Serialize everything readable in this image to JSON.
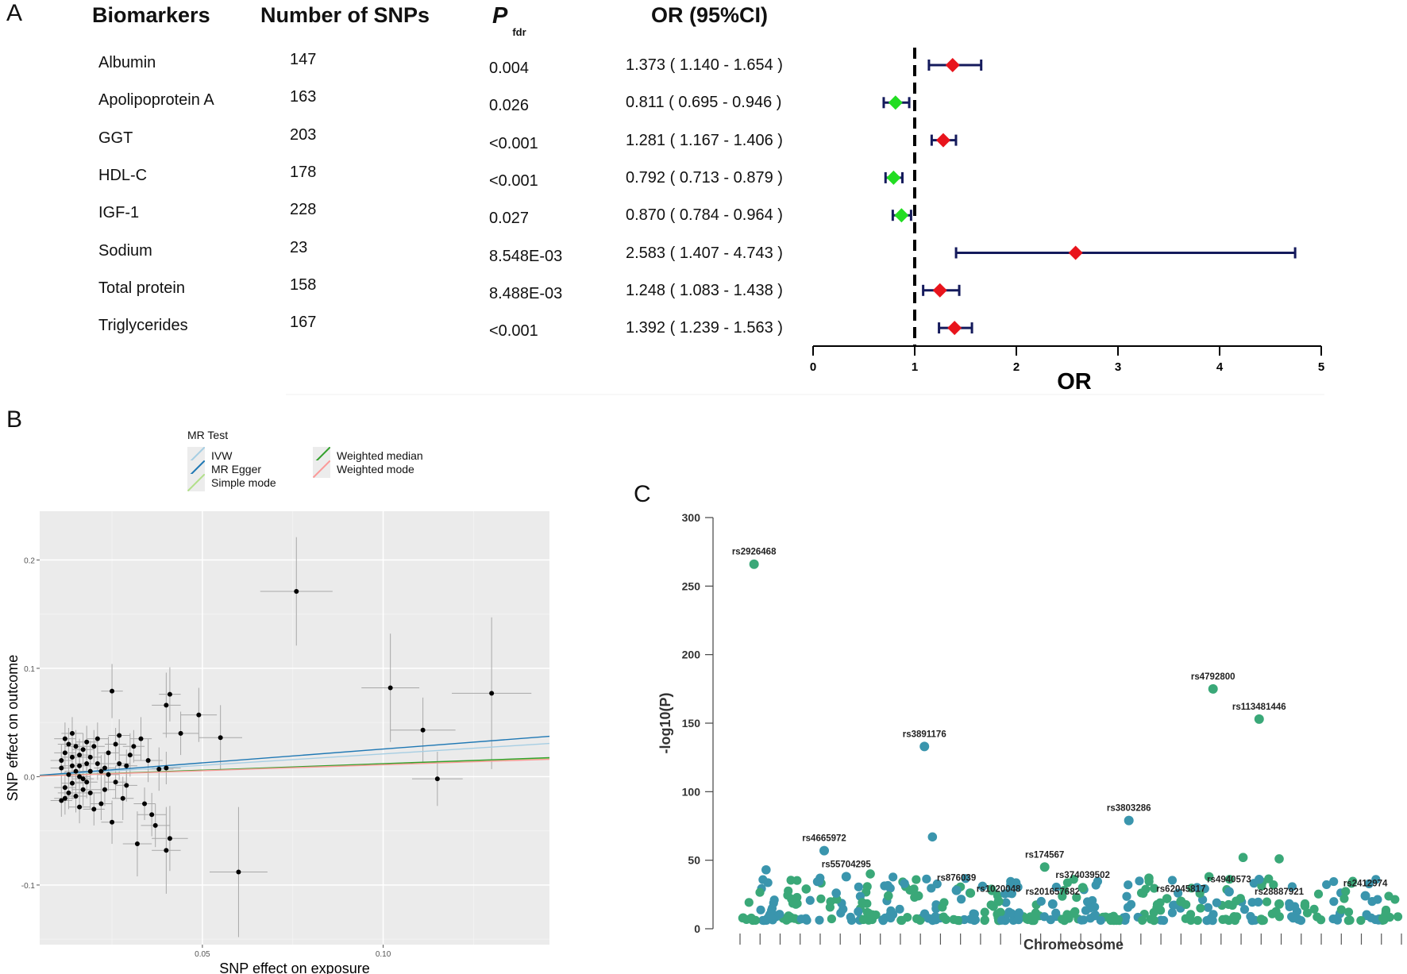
{
  "panel_labels": {
    "a": "A",
    "b": "B",
    "c": "C"
  },
  "forest": {
    "headers": {
      "biomarkers": "Biomarkers",
      "snps": "Number of SNPs",
      "p": "P",
      "p_sub": "fdr",
      "or": "OR (95%CI)"
    },
    "colors": {
      "risk": "#e8141c",
      "protective": "#22dd22",
      "ci": "#141a5c"
    }
  },
  "scatter": {
    "legend_title": "MR Test",
    "legend": [
      {
        "name": "IVW",
        "color": "#a6cee3"
      },
      {
        "name": "MR Egger",
        "color": "#1f78b4"
      },
      {
        "name": "Simple mode",
        "color": "#b2df8a"
      },
      {
        "name": "Weighted median",
        "color": "#33a02c"
      },
      {
        "name": "Weighted mode",
        "color": "#fb9a99"
      }
    ]
  },
  "chart_data": [
    {
      "type": "forest",
      "xlabel": "OR",
      "xlim": [
        0,
        5
      ],
      "xticks": [
        "0",
        "1",
        "2",
        "3",
        "4",
        "5"
      ],
      "reference_line": 1,
      "rows": [
        {
          "biomarker": "Albumin",
          "snps": "147",
          "p": "0.004",
          "or_text": "1.373 ( 1.140 - 1.654 )",
          "or": 1.373,
          "lo": 1.14,
          "hi": 1.654
        },
        {
          "biomarker": "Apolipoprotein A",
          "snps": "163",
          "p": "0.026",
          "or_text": "0.811 ( 0.695 - 0.946 )",
          "or": 0.811,
          "lo": 0.695,
          "hi": 0.946
        },
        {
          "biomarker": "GGT",
          "snps": "203",
          "p": "<0.001",
          "or_text": "1.281 ( 1.167 - 1.406 )",
          "or": 1.281,
          "lo": 1.167,
          "hi": 1.406
        },
        {
          "biomarker": "HDL-C",
          "snps": "178",
          "p": "<0.001",
          "or_text": "0.792 ( 0.713 - 0.879 )",
          "or": 0.792,
          "lo": 0.713,
          "hi": 0.879
        },
        {
          "biomarker": "IGF-1",
          "snps": "228",
          "p": "0.027",
          "or_text": "0.870 ( 0.784 - 0.964 )",
          "or": 0.87,
          "lo": 0.784,
          "hi": 0.964
        },
        {
          "biomarker": "Sodium",
          "snps": "23",
          "p": "8.548E-03",
          "or_text": "2.583 ( 1.407 - 4.743 )",
          "or": 2.583,
          "lo": 1.407,
          "hi": 4.743
        },
        {
          "biomarker": "Total protein",
          "snps": "158",
          "p": "8.488E-03",
          "or_text": "1.248 ( 1.083 - 1.438 )",
          "or": 1.248,
          "lo": 1.083,
          "hi": 1.438
        },
        {
          "biomarker": "Triglycerides",
          "snps": "167",
          "p": "<0.001",
          "or_text": "1.392 ( 1.239 - 1.563 )",
          "or": 1.392,
          "lo": 1.239,
          "hi": 1.563
        }
      ]
    },
    {
      "type": "scatter",
      "title": "",
      "xlabel": "SNP effect on exposure",
      "ylabel": "SNP effect on outcome",
      "xlim": [
        0.005,
        0.146
      ],
      "ylim": [
        -0.155,
        0.245
      ],
      "xticks": [
        {
          "v": 0.05,
          "label": "0.05"
        },
        {
          "v": 0.1,
          "label": "0.10"
        }
      ],
      "yticks": [
        {
          "v": -0.1,
          "label": "-0.1"
        },
        {
          "v": 0.0,
          "label": "0.0"
        },
        {
          "v": 0.1,
          "label": "0.1"
        },
        {
          "v": 0.2,
          "label": "0.2"
        }
      ],
      "lines": [
        {
          "name": "IVW",
          "slope": 0.21,
          "intercept": 0.0
        },
        {
          "name": "MR Egger",
          "slope": 0.255,
          "intercept": 0.0
        },
        {
          "name": "Simple mode",
          "slope": 0.115,
          "intercept": 0.0
        },
        {
          "name": "Weighted median",
          "slope": 0.12,
          "intercept": 0.0
        },
        {
          "name": "Weighted mode",
          "slope": 0.11,
          "intercept": 0.0
        }
      ],
      "points": [
        [
          0.076,
          0.171,
          0.01,
          0.05
        ],
        [
          0.102,
          0.082,
          0.008,
          0.05
        ],
        [
          0.13,
          0.077,
          0.011,
          0.07
        ],
        [
          0.111,
          0.043,
          0.009,
          0.03
        ],
        [
          0.115,
          -0.002,
          0.007,
          0.025
        ],
        [
          0.06,
          -0.088,
          0.008,
          0.06
        ],
        [
          0.055,
          0.036,
          0.006,
          0.03
        ],
        [
          0.049,
          0.057,
          0.005,
          0.025
        ],
        [
          0.044,
          0.04,
          0.005,
          0.02
        ],
        [
          0.041,
          0.076,
          0.003,
          0.025
        ],
        [
          0.04,
          0.066,
          0.004,
          0.03
        ],
        [
          0.041,
          -0.057,
          0.005,
          0.03
        ],
        [
          0.04,
          -0.068,
          0.004,
          0.04
        ],
        [
          0.037,
          -0.045,
          0.004,
          0.02
        ],
        [
          0.036,
          -0.035,
          0.004,
          0.02
        ],
        [
          0.032,
          -0.062,
          0.004,
          0.03
        ],
        [
          0.025,
          0.079,
          0.003,
          0.025
        ],
        [
          0.025,
          -0.042,
          0.003,
          0.02
        ],
        [
          0.038,
          0.007,
          0.004,
          0.02
        ],
        [
          0.035,
          0.015,
          0.004,
          0.02
        ],
        [
          0.04,
          0.008,
          0.004,
          0.015
        ],
        [
          0.033,
          0.035,
          0.003,
          0.02
        ],
        [
          0.03,
          0.02,
          0.003,
          0.02
        ],
        [
          0.028,
          -0.02,
          0.003,
          0.02
        ],
        [
          0.034,
          -0.025,
          0.003,
          0.015
        ],
        [
          0.031,
          0.028,
          0.003,
          0.015
        ],
        [
          0.029,
          -0.008,
          0.003,
          0.015
        ],
        [
          0.027,
          0.012,
          0.003,
          0.015
        ],
        [
          0.026,
          0.03,
          0.003,
          0.015
        ],
        [
          0.024,
          0.022,
          0.003,
          0.015
        ],
        [
          0.023,
          -0.012,
          0.003,
          0.015
        ],
        [
          0.022,
          0.005,
          0.003,
          0.015
        ],
        [
          0.021,
          0.035,
          0.003,
          0.015
        ],
        [
          0.02,
          -0.03,
          0.003,
          0.015
        ],
        [
          0.019,
          0.018,
          0.003,
          0.015
        ],
        [
          0.018,
          -0.005,
          0.003,
          0.015
        ],
        [
          0.017,
          0.025,
          0.003,
          0.015
        ],
        [
          0.016,
          0.01,
          0.003,
          0.015
        ],
        [
          0.015,
          -0.018,
          0.003,
          0.015
        ],
        [
          0.014,
          0.04,
          0.003,
          0.015
        ],
        [
          0.013,
          0.002,
          0.003,
          0.015
        ],
        [
          0.012,
          0.022,
          0.003,
          0.015
        ],
        [
          0.012,
          -0.01,
          0.003,
          0.015
        ],
        [
          0.011,
          0.015,
          0.003,
          0.015
        ],
        [
          0.011,
          -0.022,
          0.003,
          0.015
        ],
        [
          0.013,
          0.03,
          0.003,
          0.015
        ],
        [
          0.015,
          0.005,
          0.003,
          0.015
        ],
        [
          0.016,
          -0.028,
          0.003,
          0.015
        ],
        [
          0.018,
          0.032,
          0.003,
          0.015
        ],
        [
          0.019,
          -0.015,
          0.003,
          0.015
        ],
        [
          0.021,
          0.012,
          0.003,
          0.015
        ],
        [
          0.022,
          -0.025,
          0.003,
          0.015
        ],
        [
          0.024,
          0.002,
          0.003,
          0.015
        ],
        [
          0.026,
          -0.005,
          0.003,
          0.015
        ],
        [
          0.027,
          0.038,
          0.003,
          0.015
        ],
        [
          0.029,
          0.01,
          0.003,
          0.015
        ],
        [
          0.014,
          -0.006,
          0.003,
          0.015
        ],
        [
          0.017,
          -0.012,
          0.003,
          0.015
        ],
        [
          0.02,
          0.028,
          0.003,
          0.015
        ],
        [
          0.023,
          0.008,
          0.003,
          0.015
        ],
        [
          0.012,
          0.035,
          0.003,
          0.015
        ],
        [
          0.014,
          0.018,
          0.003,
          0.015
        ],
        [
          0.016,
          0.0,
          0.003,
          0.015
        ],
        [
          0.018,
          0.012,
          0.003,
          0.015
        ],
        [
          0.013,
          -0.015,
          0.003,
          0.015
        ],
        [
          0.015,
          0.028,
          0.003,
          0.015
        ],
        [
          0.017,
          -0.002,
          0.003,
          0.015
        ],
        [
          0.019,
          0.005,
          0.003,
          0.015
        ],
        [
          0.011,
          0.008,
          0.003,
          0.015
        ],
        [
          0.012,
          -0.02,
          0.003,
          0.015
        ],
        [
          0.014,
          0.01,
          0.003,
          0.015
        ],
        [
          0.016,
          0.02,
          0.003,
          0.015
        ]
      ]
    },
    {
      "type": "scatter",
      "subtype": "manhattan",
      "xlabel": "Chromeosome",
      "ylabel": "-log10(P)",
      "ylim": [
        0,
        300
      ],
      "yticks": [
        "0",
        "50",
        "100",
        "150",
        "200",
        "250",
        "300"
      ],
      "colors": {
        "teal": "#3a95ad",
        "green": "#3aa878"
      },
      "labeled": [
        {
          "id": "rs2926468",
          "pos": 0.7,
          "y": 266,
          "c": "green"
        },
        {
          "id": "rs4665972",
          "pos": 4.2,
          "y": 57,
          "c": "teal"
        },
        {
          "id": "rs55704295",
          "pos": 5.3,
          "y": 38,
          "c": "teal"
        },
        {
          "id": "rs3891176",
          "pos": 9.2,
          "y": 133,
          "c": "teal"
        },
        {
          "id": "rs876039",
          "pos": 10.8,
          "y": 28,
          "c": "teal"
        },
        {
          "id": "rs1020048",
          "pos": 12.9,
          "y": 20,
          "c": "green"
        },
        {
          "id": "rs174567",
          "pos": 15.2,
          "y": 45,
          "c": "green"
        },
        {
          "id": "rs201657682",
          "pos": 15.6,
          "y": 18,
          "c": "teal"
        },
        {
          "id": "rs374039502",
          "pos": 17.1,
          "y": 30,
          "c": "green"
        },
        {
          "id": "rs3803286",
          "pos": 19.4,
          "y": 79,
          "c": "teal"
        },
        {
          "id": "rs62045817",
          "pos": 22.0,
          "y": 20,
          "c": "green"
        },
        {
          "id": "rs4940573",
          "pos": 24.4,
          "y": 27,
          "c": "teal"
        },
        {
          "id": "rs4792800",
          "pos": 23.6,
          "y": 175,
          "c": "green"
        },
        {
          "id": "rs113481446",
          "pos": 25.9,
          "y": 153,
          "c": "green"
        },
        {
          "id": "rs28887921",
          "pos": 26.9,
          "y": 18,
          "c": "green"
        },
        {
          "id": "rs2412974",
          "pos": 31.2,
          "y": 24,
          "c": "teal"
        }
      ]
    }
  ]
}
